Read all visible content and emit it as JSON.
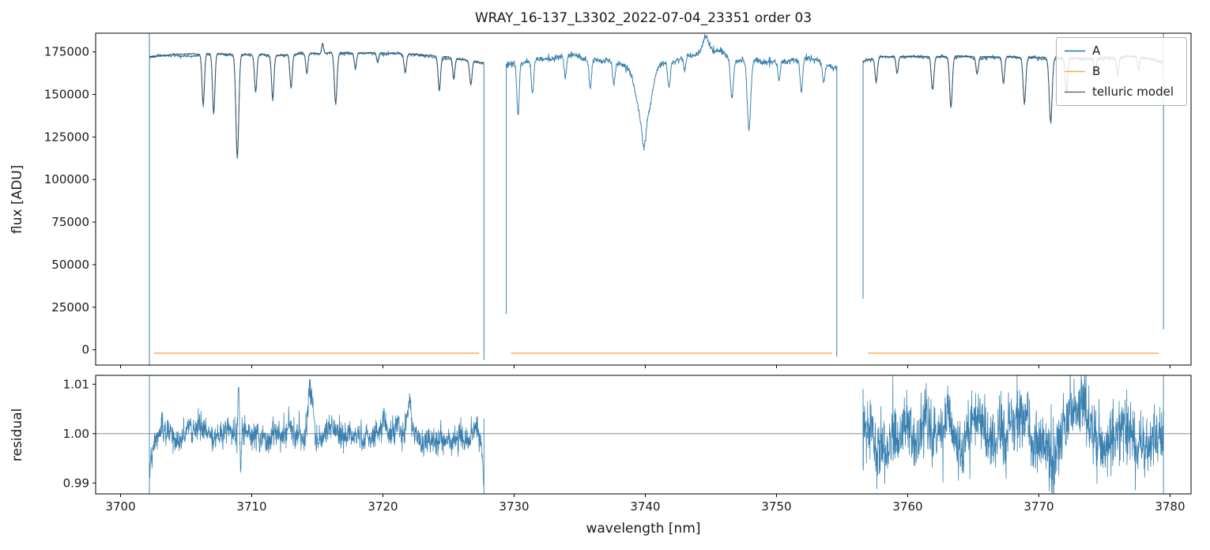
{
  "chart_data": {
    "type": "line",
    "title": "WRAY_16-137_L3302_2022-07-04_23351  order 03",
    "xlabel": "wavelength [nm]",
    "xlim": [
      3698.1,
      3781.6
    ],
    "xticks": [
      3700,
      3710,
      3720,
      3730,
      3740,
      3750,
      3760,
      3770,
      3780
    ],
    "legend": {
      "entries": [
        {
          "label": "A",
          "color": "#1f77b4"
        },
        {
          "label": "B",
          "color": "#ffa64d"
        },
        {
          "label": "telluric model",
          "color": "#555555"
        }
      ]
    },
    "panels": [
      {
        "ylabel": "flux [ADU]",
        "ylim": [
          -9000,
          186000
        ],
        "yticks": [
          0,
          25000,
          50000,
          75000,
          100000,
          125000,
          150000,
          175000
        ],
        "decimals": 0
      },
      {
        "ylabel": "residual",
        "ylim": [
          0.9878,
          1.0118
        ],
        "yticks": [
          0.99,
          1.0,
          1.01
        ],
        "decimals": 2,
        "hline": 1.0
      }
    ],
    "colors": {
      "A": "#3a81b0",
      "B": "#ffa64d",
      "telluric": "#36454f",
      "residual": "#3a81b0",
      "hline": "#8c8c8c",
      "spine": "#000000"
    },
    "b_level": -2000,
    "seed": 7,
    "segments": [
      {
        "x0": 3702.2,
        "x1": 3727.7,
        "telluric": true,
        "noise": 700,
        "base": [
          [
            3702.2,
            171800
          ],
          [
            3704,
            173200
          ],
          [
            3708,
            173600
          ],
          [
            3712,
            172800
          ],
          [
            3715,
            173900
          ],
          [
            3719,
            174200
          ],
          [
            3722,
            173600
          ],
          [
            3725,
            171800
          ],
          [
            3727.7,
            168200
          ]
        ],
        "lines": [
          [
            3706.3,
            30000,
            0.09
          ],
          [
            3707.1,
            35000,
            0.09
          ],
          [
            3708.9,
            61000,
            0.11
          ],
          [
            3710.3,
            22000,
            0.09
          ],
          [
            3711.6,
            26000,
            0.09
          ],
          [
            3713.0,
            20000,
            0.09
          ],
          [
            3714.2,
            12000,
            0.08
          ],
          [
            3715.4,
            -6000,
            0.07
          ],
          [
            3716.4,
            30000,
            0.1
          ],
          [
            3717.9,
            9000,
            0.08
          ],
          [
            3719.6,
            5000,
            0.08
          ],
          [
            3721.7,
            11000,
            0.09
          ],
          [
            3724.3,
            20000,
            0.09
          ],
          [
            3725.4,
            12000,
            0.08
          ],
          [
            3726.7,
            14000,
            0.09
          ]
        ],
        "edge_left": [
          -9000,
          186000
        ],
        "edge_right": [
          -6000,
          168000
        ],
        "residual": {
          "noise": 0.0013,
          "wander": 0.0012,
          "ramp_in": -0.009,
          "ramp_out": -0.01,
          "spikes": [
            [
              3709.0,
              0.01,
              0.05
            ],
            [
              3709.15,
              -0.007,
              0.05
            ],
            [
              3714.5,
              0.0085,
              0.22
            ],
            [
              3714.9,
              -0.002,
              0.1
            ],
            [
              3722.0,
              0.0055,
              0.12
            ],
            [
              3710.8,
              -0.0015,
              0.3
            ]
          ],
          "edge_left": [
            0.9878,
            1.0118
          ],
          "edge_right": [
            0.9878,
            1.003
          ]
        }
      },
      {
        "x0": 3729.4,
        "x1": 3754.6,
        "telluric": false,
        "noise": 1400,
        "base": [
          [
            3729.4,
            167000
          ],
          [
            3731,
            170500
          ],
          [
            3734,
            172300
          ],
          [
            3737,
            170500
          ],
          [
            3739,
            168500
          ],
          [
            3742,
            169500
          ],
          [
            3744,
            173500
          ],
          [
            3745.3,
            176500
          ],
          [
            3747,
            170500
          ],
          [
            3750,
            169500
          ],
          [
            3752.5,
            171500
          ],
          [
            3754.6,
            165500
          ]
        ],
        "lines": [
          [
            3730.3,
            30000,
            0.09
          ],
          [
            3731.4,
            20000,
            0.09
          ],
          [
            3733.9,
            12000,
            0.09
          ],
          [
            3735.8,
            17000,
            0.09
          ],
          [
            3737.6,
            12000,
            0.09
          ],
          [
            3739.9,
            38000,
            0.5
          ],
          [
            3739.9,
            10000,
            0.12
          ],
          [
            3741.8,
            14000,
            0.1
          ],
          [
            3743.0,
            8000,
            0.09
          ],
          [
            3744.6,
            -9000,
            0.2
          ],
          [
            3746.6,
            24000,
            0.11
          ],
          [
            3747.9,
            39000,
            0.13
          ],
          [
            3750.2,
            11000,
            0.09
          ],
          [
            3751.9,
            19000,
            0.1
          ],
          [
            3753.6,
            11000,
            0.09
          ]
        ],
        "edge_left": [
          21000,
          168000
        ],
        "edge_right": [
          -4000,
          167000
        ],
        "residual": null
      },
      {
        "x0": 3756.6,
        "x1": 3779.5,
        "telluric": true,
        "noise": 800,
        "base": [
          [
            3756.6,
            169500
          ],
          [
            3758,
            171600
          ],
          [
            3762,
            172200
          ],
          [
            3766,
            172000
          ],
          [
            3770,
            171400
          ],
          [
            3774,
            171000
          ],
          [
            3777,
            172300
          ],
          [
            3779.5,
            169000
          ]
        ],
        "lines": [
          [
            3757.6,
            14000,
            0.09
          ],
          [
            3759.2,
            10000,
            0.09
          ],
          [
            3761.9,
            20000,
            0.1
          ],
          [
            3763.3,
            30000,
            0.1
          ],
          [
            3765.3,
            10000,
            0.09
          ],
          [
            3767.3,
            15000,
            0.09
          ],
          [
            3768.9,
            27000,
            0.1
          ],
          [
            3770.9,
            38000,
            0.11
          ],
          [
            3772.1,
            20000,
            0.09
          ],
          [
            3774.3,
            8000,
            0.08
          ],
          [
            3776.0,
            10000,
            0.09
          ],
          [
            3777.6,
            8000,
            0.08
          ]
        ],
        "edge_left": [
          30000,
          170000
        ],
        "edge_right": [
          12000,
          186000
        ],
        "residual": {
          "noise": 0.003,
          "wander": 0.0022,
          "ramp_in": 0.0,
          "ramp_out": 0.0,
          "spikes": [
            [
              3765.0,
              0.003,
              0.3
            ],
            [
              3771.0,
              -0.004,
              0.25
            ],
            [
              3773.4,
              0.005,
              0.35
            ],
            [
              3776.6,
              0.004,
              0.4
            ]
          ],
          "edge_left": [
            0.993,
            1.009
          ],
          "edge_right": [
            0.9878,
            1.0118
          ]
        }
      }
    ]
  }
}
